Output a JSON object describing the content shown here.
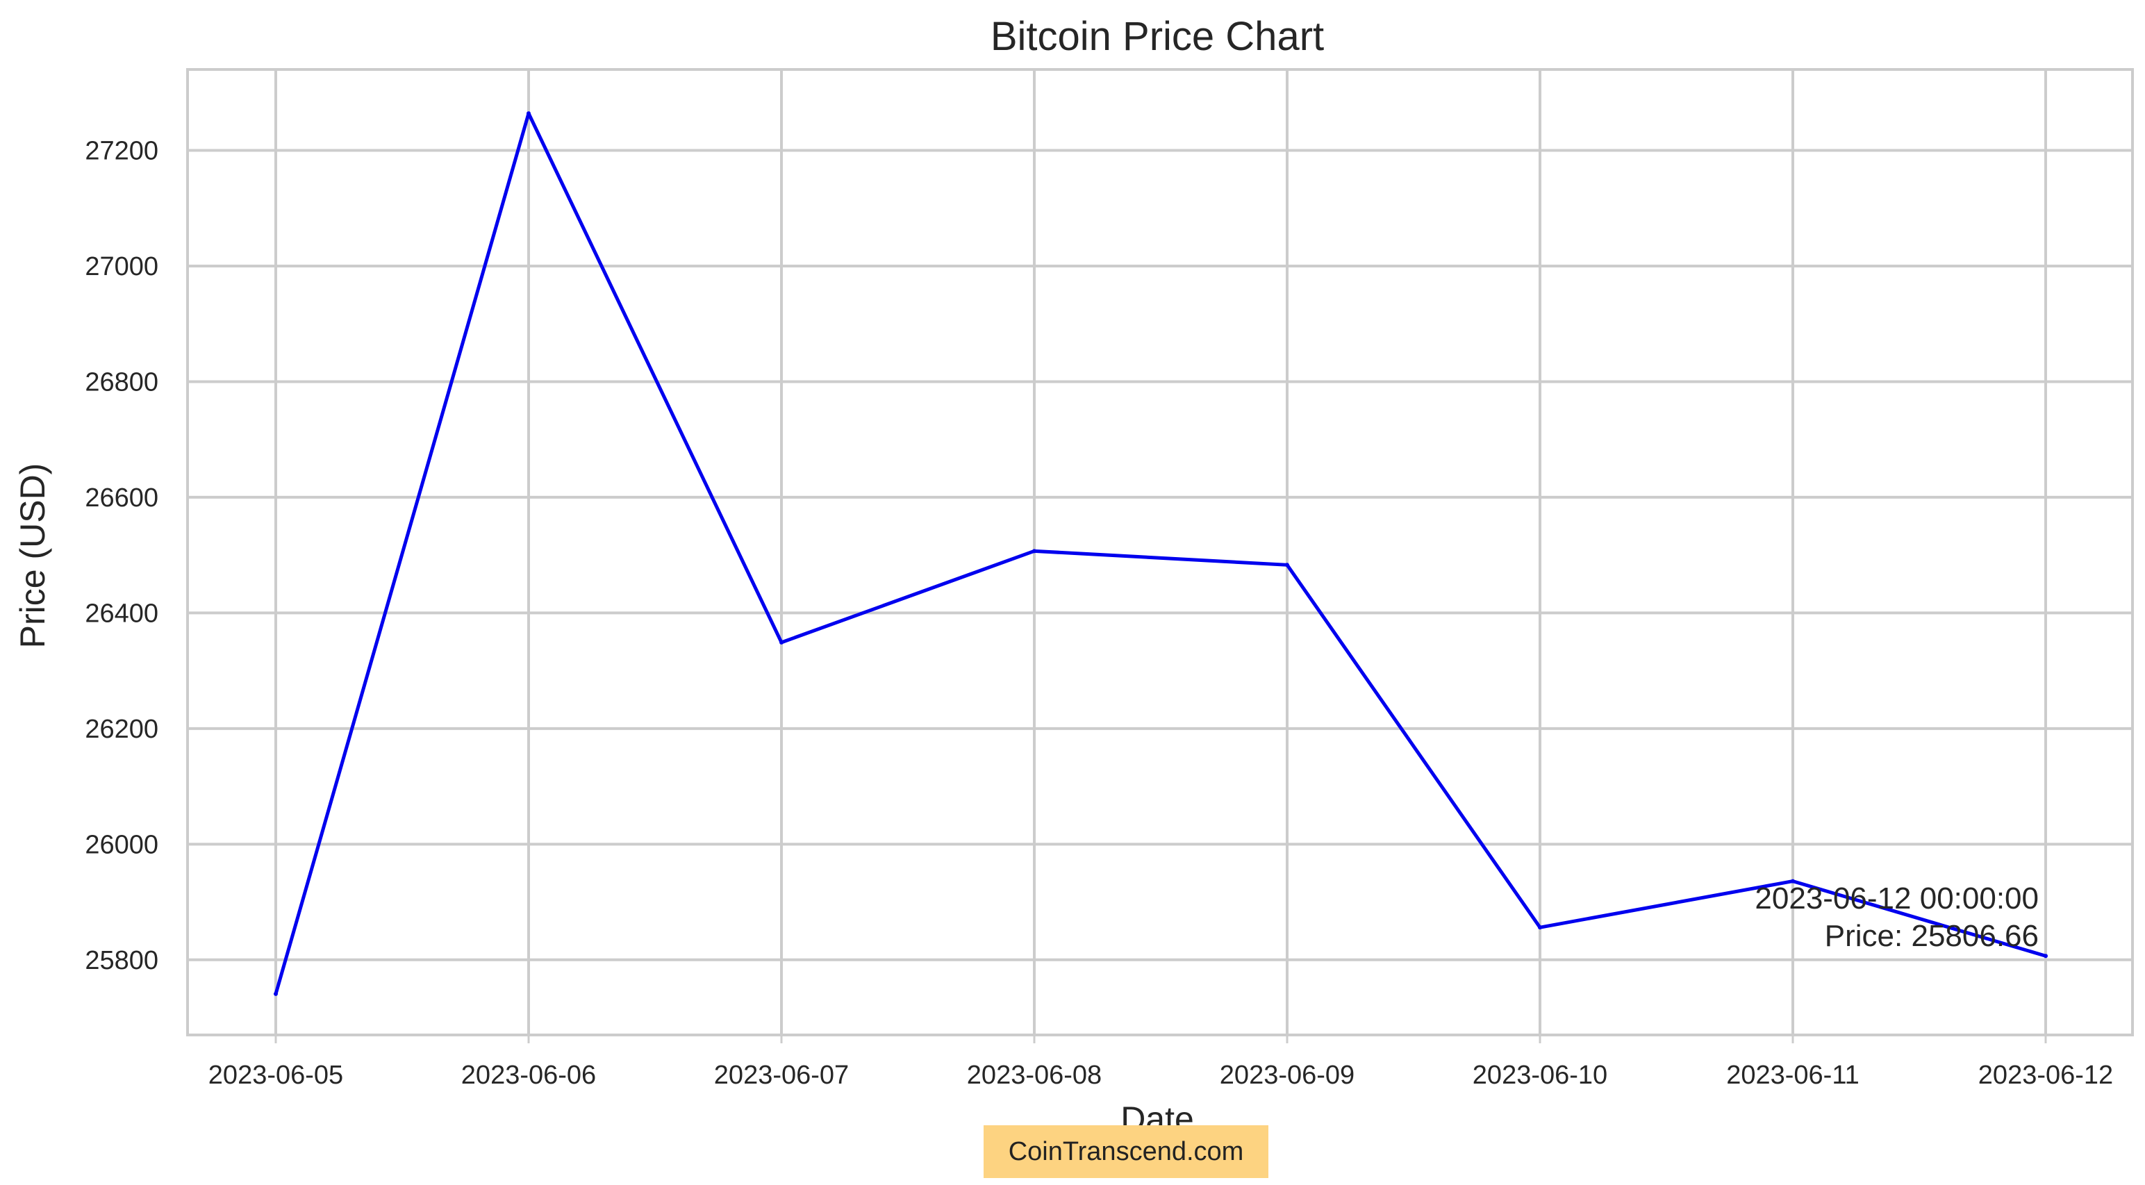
{
  "chart_data": {
    "type": "line",
    "title": "Bitcoin Price Chart",
    "xlabel": "Date",
    "ylabel": "Price (USD)",
    "x": [
      "2023-06-05",
      "2023-06-06",
      "2023-06-07",
      "2023-06-08",
      "2023-06-09",
      "2023-06-10",
      "2023-06-11",
      "2023-06-12"
    ],
    "series": [
      {
        "values": [
          25741,
          27264,
          26349,
          26507,
          26483,
          25856,
          25936,
          25806.66
        ]
      }
    ],
    "xticks": [
      "2023-06-05",
      "2023-06-06",
      "2023-06-07",
      "2023-06-08",
      "2023-06-09",
      "2023-06-10",
      "2023-06-11",
      "2023-06-12"
    ],
    "yticks": [
      25800,
      26000,
      26200,
      26400,
      26600,
      26800,
      27000,
      27200
    ],
    "ylim": [
      25670,
      27340
    ],
    "grid": true,
    "line_color": "#0000ee",
    "grid_color": "#cccccc",
    "annotation": {
      "line1": "2023-06-12 00:00:00",
      "line2": "Price: 25806.66"
    },
    "watermark": {
      "text": "CoinTranscend.com",
      "background": "#fdd381"
    }
  }
}
